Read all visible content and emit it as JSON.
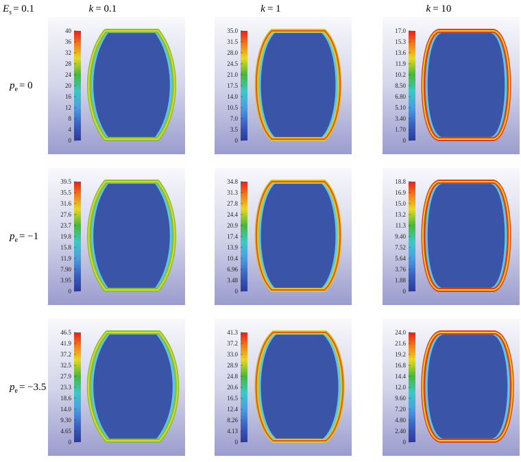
{
  "header": {
    "corner": {
      "symbol": "E",
      "subscript": "s",
      "value": "= 0.1"
    },
    "columns": [
      {
        "symbol": "k",
        "value": "= 0.1"
      },
      {
        "symbol": "k",
        "value": "= 1"
      },
      {
        "symbol": "k",
        "value": "= 10"
      }
    ]
  },
  "rows": [
    {
      "label": {
        "symbol": "p",
        "subscript": "e",
        "value": "= 0"
      },
      "panels": [
        {
          "colorbar_ticks": [
            "40",
            "36",
            "32",
            "28",
            "24",
            "20",
            "16",
            "12",
            "8",
            "4",
            "0"
          ]
        },
        {
          "colorbar_ticks": [
            "35.0",
            "31.5",
            "28.0",
            "24.5",
            "21.0",
            "17.5",
            "14.0",
            "10.5",
            "7.0",
            "3.5",
            "0"
          ]
        },
        {
          "colorbar_ticks": [
            "17.0",
            "15.3",
            "13.6",
            "11.9",
            "10.2",
            "8.50",
            "6.80",
            "5.10",
            "3.40",
            "1.70",
            "0"
          ]
        }
      ]
    },
    {
      "label": {
        "symbol": "p",
        "subscript": "e",
        "value": "= −1"
      },
      "panels": [
        {
          "colorbar_ticks": [
            "39.5",
            "35.5",
            "31.6",
            "27.6",
            "23.7",
            "19.8",
            "15.8",
            "11.9",
            "7.90",
            "3.95",
            "0"
          ]
        },
        {
          "colorbar_ticks": [
            "34.8",
            "31.3",
            "27.8",
            "24.4",
            "20.9",
            "17.4",
            "13.9",
            "10.4",
            "6.96",
            "3.48",
            "0"
          ]
        },
        {
          "colorbar_ticks": [
            "18.8",
            "16.9",
            "15.0",
            "13.2",
            "11.3",
            "9.40",
            "7.52",
            "5.64",
            "3.76",
            "1.88",
            "0"
          ]
        }
      ]
    },
    {
      "label": {
        "symbol": "p",
        "subscript": "e",
        "value": "= −3.5"
      },
      "panels": [
        {
          "colorbar_ticks": [
            "46.5",
            "41.9",
            "37.2",
            "32.5",
            "27.9",
            "23.3",
            "18.6",
            "14.0",
            "9.30",
            "4.65",
            "0"
          ]
        },
        {
          "colorbar_ticks": [
            "41.3",
            "37.2",
            "33.0",
            "28.9",
            "24.8",
            "20.6",
            "16.5",
            "12.4",
            "8.26",
            "4.13",
            "0"
          ]
        },
        {
          "colorbar_ticks": [
            "24.0",
            "21.6",
            "19.2",
            "16.8",
            "14.4",
            "12.0",
            "9.60",
            "7.20",
            "4.80",
            "2.40",
            "0"
          ]
        }
      ]
    }
  ]
}
